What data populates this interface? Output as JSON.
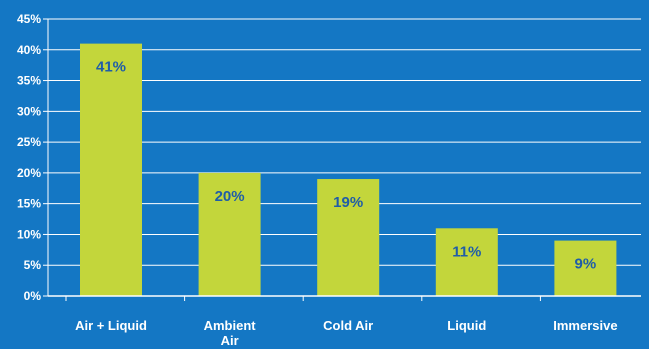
{
  "chart_data": {
    "type": "bar",
    "categories": [
      [
        "Air + Liquid"
      ],
      [
        "Ambient",
        "Air"
      ],
      [
        "Cold Air"
      ],
      [
        "Liquid"
      ],
      [
        "Immersive"
      ]
    ],
    "values": [
      41,
      20,
      19,
      11,
      9
    ],
    "value_labels": [
      "41%",
      "20%",
      "19%",
      "11%",
      "9%"
    ],
    "ylim": [
      0,
      45
    ],
    "yticks": [
      0,
      5,
      10,
      15,
      20,
      25,
      30,
      35,
      40,
      45
    ],
    "ytick_labels": [
      "0%",
      "5%",
      "10%",
      "15%",
      "20%",
      "25%",
      "30%",
      "35%",
      "40%",
      "45%"
    ],
    "grid": true,
    "colors": {
      "background": "#1477c4",
      "bar": "#c3d63b",
      "grid": "#ffffff",
      "axis": "#ffffff",
      "data_label": "#1f5da8",
      "tick_label": "#ffffff"
    }
  }
}
